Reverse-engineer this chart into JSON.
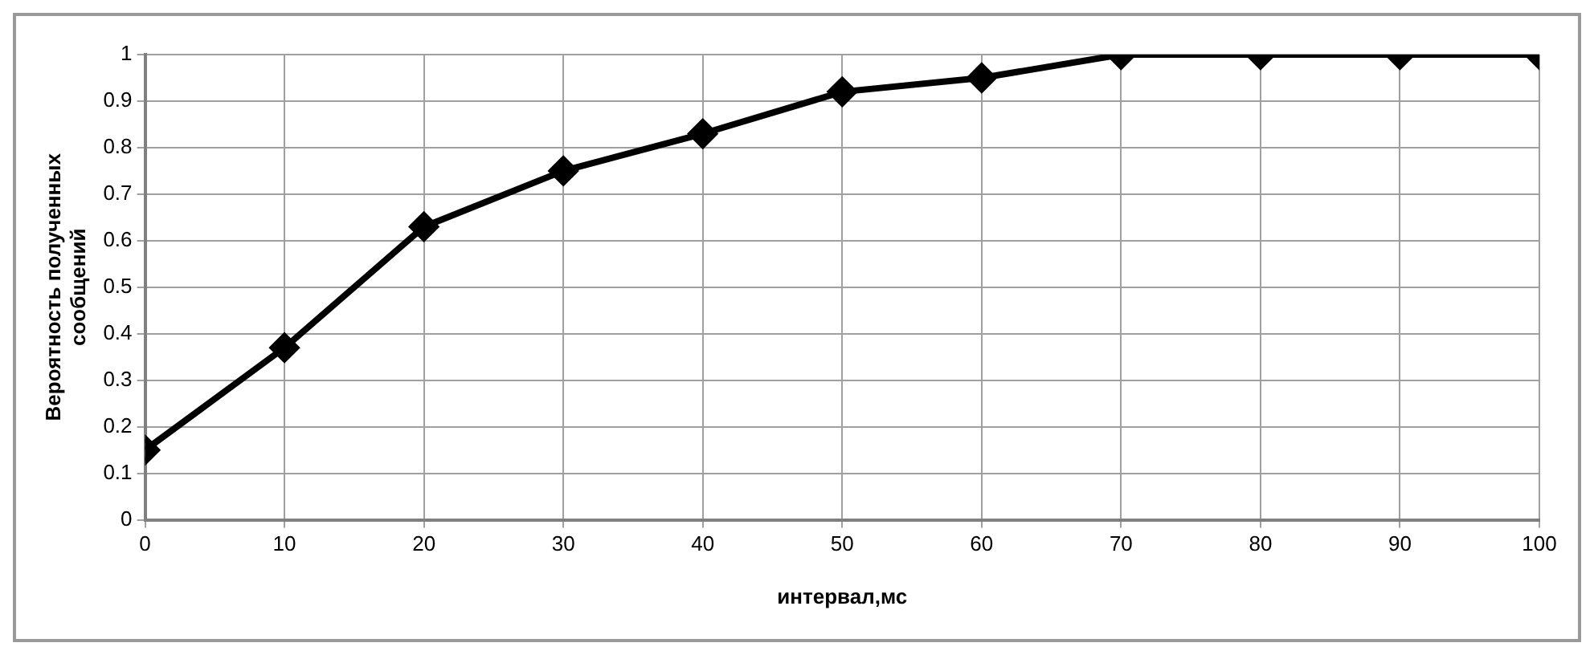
{
  "chart_data": {
    "type": "line",
    "xlabel": "интервал,мс",
    "ylabel": "Вероятность полученных\nсообщений",
    "x": [
      0,
      10,
      20,
      30,
      40,
      50,
      60,
      70,
      80,
      90,
      100
    ],
    "series": [
      {
        "color": "#000000",
        "values": [
          0.15,
          0.37,
          0.63,
          0.75,
          0.83,
          0.92,
          0.95,
          1,
          1,
          1,
          1
        ]
      }
    ],
    "xlim": [
      0,
      100
    ],
    "xticks": [
      0,
      10,
      20,
      30,
      40,
      50,
      60,
      70,
      80,
      90,
      100
    ],
    "ylim": [
      0,
      1
    ],
    "yticks": [
      0,
      0.1,
      0.2,
      0.3,
      0.4,
      0.5,
      0.6,
      0.7,
      0.8,
      0.9,
      1
    ],
    "grid": true,
    "marker": "diamond",
    "line_style": "solid",
    "legend": false
  }
}
